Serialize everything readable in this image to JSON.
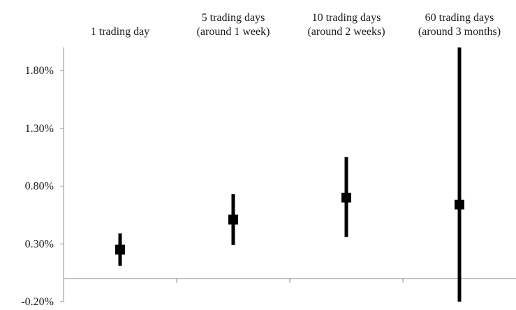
{
  "chart_data": {
    "type": "errorbar",
    "categories": [
      [
        "1 trading day"
      ],
      [
        "5 trading days",
        "(around 1 week)"
      ],
      [
        "10 trading days",
        "(around 2 weeks)"
      ],
      [
        "60 trading days",
        "(around 3 months)"
      ]
    ],
    "series": [
      {
        "points": [
          {
            "estimate": 0.25,
            "low": 0.11,
            "high": 0.39
          },
          {
            "estimate": 0.51,
            "low": 0.29,
            "high": 0.73
          },
          {
            "estimate": 0.7,
            "low": 0.36,
            "high": 1.05
          },
          {
            "estimate": 0.64,
            "low": -0.2,
            "high": 2.0
          }
        ]
      }
    ],
    "y_ticks": [
      -0.2,
      0.3,
      0.8,
      1.3,
      1.8
    ],
    "y_tick_labels": [
      "-0.20%",
      "0.30%",
      "0.80%",
      "1.30%",
      "1.80%"
    ],
    "ylim": [
      -0.2,
      2.0
    ],
    "baseline": 0,
    "grid": false,
    "legend": "none",
    "colors": {
      "marker": "#000000",
      "axis": "#8c8c8c",
      "text": "#1a1a1a"
    }
  }
}
